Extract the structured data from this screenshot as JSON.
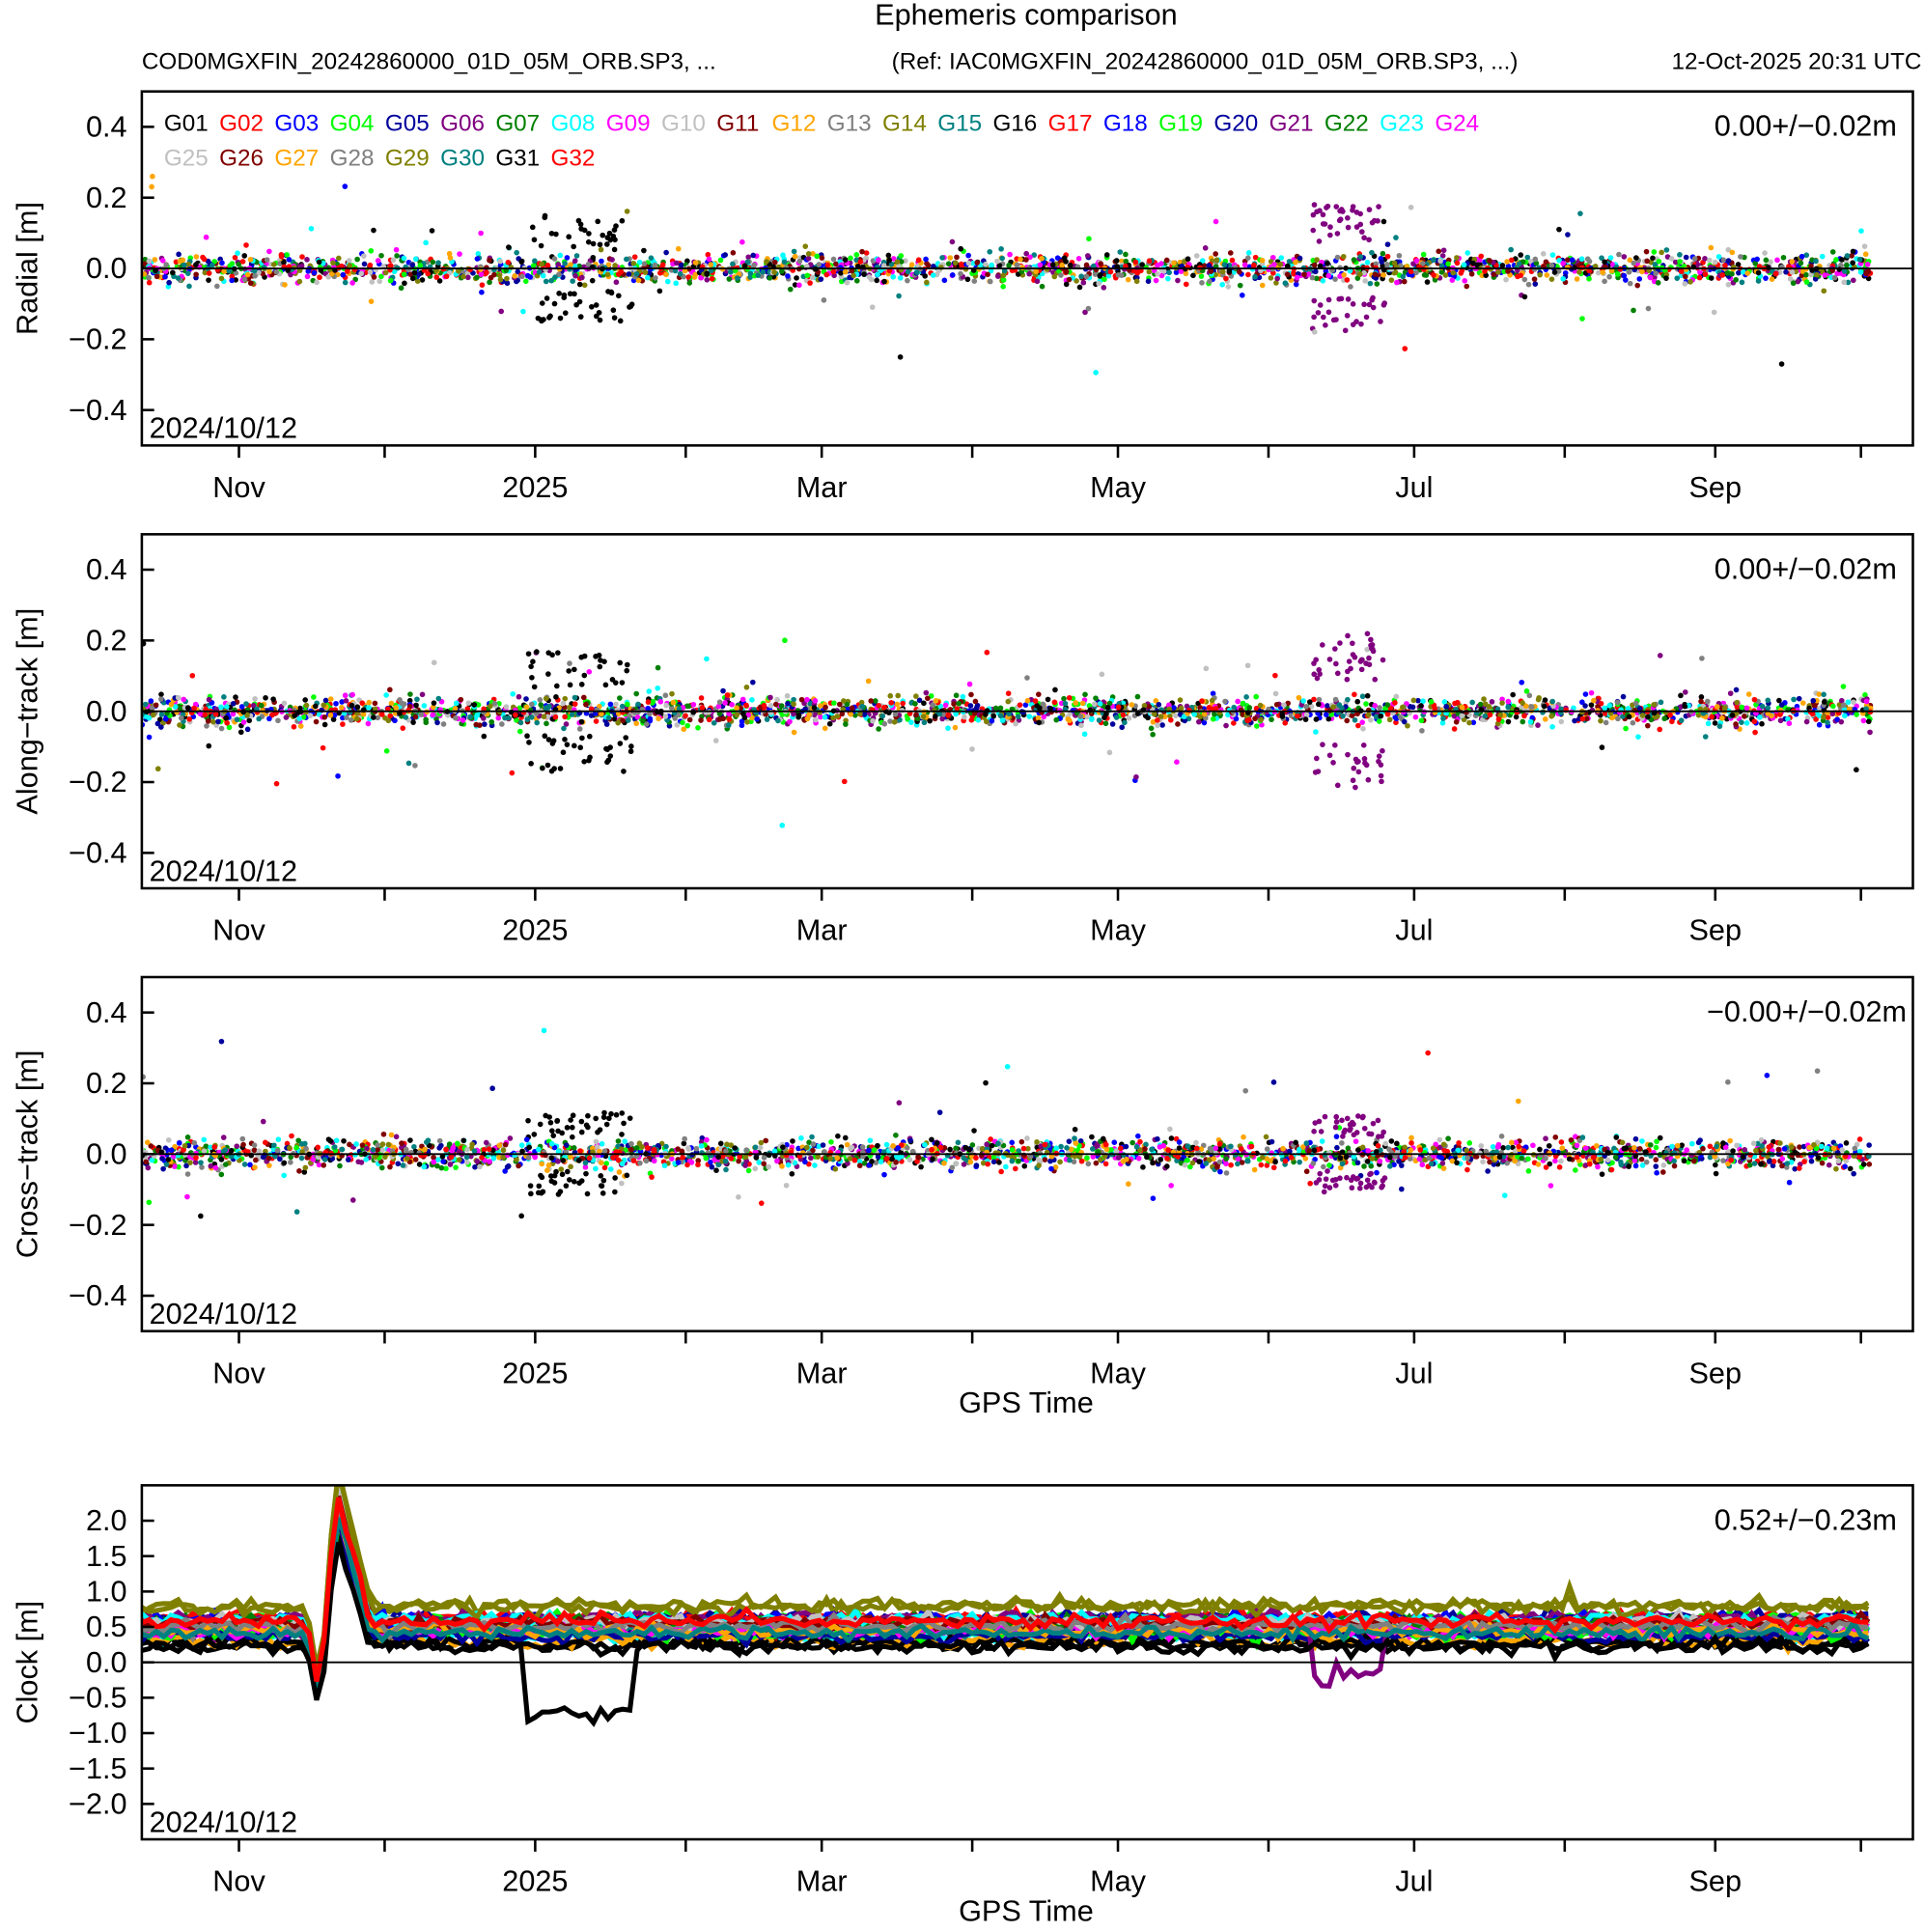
{
  "chart_data": {
    "type": "scatter",
    "title": "Ephemeris comparison",
    "subtitle_left": "COD0MGXFIN_20242860000_01D_05M_ORB.SP3, ...",
    "subtitle_ref": "(Ref: IAC0MGXFIN_20242860000_01D_05M_ORB.SP3, ...)",
    "subtitle_date": "12-Oct-2025 20:31 UTC",
    "x_units": "days since 2024/10/12",
    "xlim": [
      0,
      364.7
    ],
    "x_ticks": [
      {
        "day": 20,
        "label": "Nov"
      },
      {
        "day": 50,
        "label": ""
      },
      {
        "day": 81,
        "label": "2025"
      },
      {
        "day": 112,
        "label": ""
      },
      {
        "day": 140,
        "label": "Mar"
      },
      {
        "day": 171,
        "label": ""
      },
      {
        "day": 201,
        "label": "May"
      },
      {
        "day": 232,
        "label": ""
      },
      {
        "day": 262,
        "label": "Jul"
      },
      {
        "day": 293,
        "label": ""
      },
      {
        "day": 324,
        "label": "Sep"
      },
      {
        "day": 354,
        "label": ""
      }
    ],
    "xlabel": "GPS Time",
    "start_label": "2024/10/12",
    "satellites": [
      {
        "name": "G01",
        "color": "#000000"
      },
      {
        "name": "G02",
        "color": "#ff0000"
      },
      {
        "name": "G03",
        "color": "#0000ff"
      },
      {
        "name": "G04",
        "color": "#00ff00"
      },
      {
        "name": "G05",
        "color": "#00009c"
      },
      {
        "name": "G06",
        "color": "#800080"
      },
      {
        "name": "G07",
        "color": "#008000"
      },
      {
        "name": "G08",
        "color": "#00ffff"
      },
      {
        "name": "G09",
        "color": "#ff00ff"
      },
      {
        "name": "G10",
        "color": "#c0c0c0"
      },
      {
        "name": "G11",
        "color": "#800000"
      },
      {
        "name": "G12",
        "color": "#ffa500"
      },
      {
        "name": "G13",
        "color": "#808080"
      },
      {
        "name": "G14",
        "color": "#808000"
      },
      {
        "name": "G15",
        "color": "#008080"
      },
      {
        "name": "G16",
        "color": "#000000"
      },
      {
        "name": "G17",
        "color": "#ff0000"
      },
      {
        "name": "G18",
        "color": "#0000ff"
      },
      {
        "name": "G19",
        "color": "#00ff00"
      },
      {
        "name": "G20",
        "color": "#00009c"
      },
      {
        "name": "G21",
        "color": "#800080"
      },
      {
        "name": "G22",
        "color": "#008000"
      },
      {
        "name": "G23",
        "color": "#00ffff"
      },
      {
        "name": "G24",
        "color": "#ff00ff"
      },
      {
        "name": "G25",
        "color": "#c0c0c0"
      },
      {
        "name": "G26",
        "color": "#800000"
      },
      {
        "name": "G27",
        "color": "#ffa500"
      },
      {
        "name": "G28",
        "color": "#808080"
      },
      {
        "name": "G29",
        "color": "#808000"
      },
      {
        "name": "G30",
        "color": "#008080"
      },
      {
        "name": "G31",
        "color": "#000000"
      },
      {
        "name": "G32",
        "color": "#ff0000"
      }
    ],
    "panels": [
      {
        "key": "radial",
        "ylabel": "Radial [m]",
        "ylim": [
          -0.5,
          0.5
        ],
        "yticks": [
          0.4,
          0.2,
          0.0,
          -0.2,
          -0.4
        ],
        "ytick_labels": [
          "0.4",
          "0.2",
          "0.0",
          "−0.2",
          "−0.4"
        ],
        "stat": "0.00+/−0.02m",
        "mean": 0.0,
        "std": 0.02,
        "show_legend": true,
        "show_xlabel": false
      },
      {
        "key": "along",
        "ylabel": "Along−track [m]",
        "ylim": [
          -0.5,
          0.5
        ],
        "yticks": [
          0.4,
          0.2,
          0.0,
          -0.2,
          -0.4
        ],
        "ytick_labels": [
          "0.4",
          "0.2",
          "0.0",
          "−0.2",
          "−0.4"
        ],
        "stat": "0.00+/−0.02m",
        "mean": 0.0,
        "std": 0.02,
        "show_legend": false,
        "show_xlabel": false
      },
      {
        "key": "cross",
        "ylabel": "Cross−track [m]",
        "ylim": [
          -0.5,
          0.5
        ],
        "yticks": [
          0.4,
          0.2,
          0.0,
          -0.2,
          -0.4
        ],
        "ytick_labels": [
          "0.4",
          "0.2",
          "0.0",
          "−0.2",
          "−0.4"
        ],
        "stat": "−0.00+/−0.02m",
        "mean": 0.0,
        "std": 0.02,
        "show_legend": false,
        "show_xlabel": true
      },
      {
        "key": "clock",
        "ylabel": "Clock [m]",
        "ylim": [
          -2.5,
          2.5
        ],
        "yticks": [
          2.0,
          1.5,
          1.0,
          0.5,
          0.0,
          -0.5,
          -1.0,
          -1.5,
          -2.0
        ],
        "ytick_labels": [
          "2.0",
          "1.5",
          "1.0",
          "0.5",
          "0.0",
          "−0.5",
          "−1.0",
          "−1.5",
          "−2.0"
        ],
        "stat": "0.52+/−0.23m",
        "mean": 0.52,
        "std": 0.23,
        "show_legend": false,
        "show_xlabel": true
      }
    ],
    "events": [
      {
        "sat": "G16",
        "start_day": 79,
        "end_day": 101,
        "radial": 0.15,
        "along": 0.17,
        "cross": 0.12,
        "clock": -0.7
      },
      {
        "sat": "G21",
        "start_day": 241,
        "end_day": 256,
        "radial": 0.18,
        "along": 0.22,
        "cross": 0.11,
        "clock": -0.2
      }
    ],
    "clock_common_profile": [
      [
        0,
        0
      ],
      [
        34,
        0
      ],
      [
        36.5,
        -0.9
      ],
      [
        38,
        0
      ],
      [
        40,
        1.6
      ],
      [
        47,
        0
      ],
      [
        364,
        0
      ]
    ],
    "clock_baselines": {
      "G14": 0.8,
      "G29": 0.78,
      "G02": 0.62,
      "G17": 0.6,
      "G32": 0.58,
      "G15": 0.45,
      "G30": 0.42,
      "G01": 0.25,
      "G16": 0.28,
      "G31": 0.22,
      "G12": 0.3
    }
  }
}
